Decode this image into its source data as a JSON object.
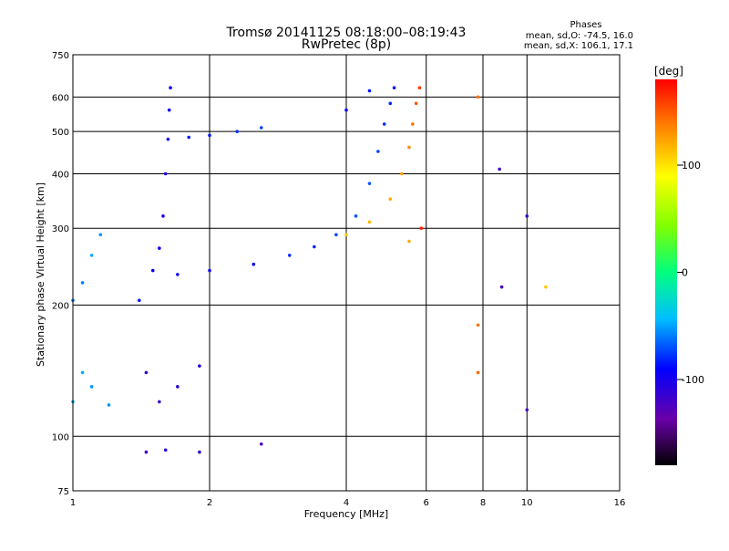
{
  "chart_data": {
    "type": "scatter",
    "title": "Tromsø 20141125 08:18:00–08:19:43",
    "subtitle": "RwPretec (8p)",
    "xlabel": "Frequency [MHz]",
    "ylabel": "Stationary phase Virtual Height [km]",
    "x_scale": "log",
    "y_scale": "log",
    "xlim": [
      1,
      16
    ],
    "ylim": [
      75,
      750
    ],
    "x_ticks": [
      1,
      2,
      4,
      6,
      8,
      10,
      16
    ],
    "y_ticks": [
      75,
      100,
      200,
      300,
      400,
      500,
      600,
      750
    ],
    "grid": true,
    "legend": {
      "title": "Phases",
      "lines": [
        "mean, sd,O: -74.5, 16.0",
        "mean, sd,X: 106.1, 17.1"
      ],
      "position": "top-right"
    },
    "colorbar": {
      "label": "[deg]",
      "range": [
        -180,
        180
      ],
      "ticks": [
        -100,
        0,
        100
      ],
      "colormap": "rainbow"
    },
    "series": [
      {
        "values": [
          [
            1.0,
            205,
            -60
          ],
          [
            1.05,
            225,
            -60
          ],
          [
            1.1,
            260,
            -50
          ],
          [
            1.15,
            290,
            -55
          ],
          [
            1.4,
            205,
            -85
          ],
          [
            1.5,
            240,
            -90
          ],
          [
            1.55,
            270,
            -95
          ],
          [
            1.58,
            320,
            -100
          ],
          [
            1.6,
            400,
            -105
          ],
          [
            1.62,
            480,
            -100
          ],
          [
            1.63,
            560,
            -95
          ],
          [
            1.64,
            630,
            -90
          ],
          [
            1.8,
            485,
            -85
          ],
          [
            2.0,
            490,
            -85
          ],
          [
            2.3,
            500,
            -80
          ],
          [
            2.6,
            510,
            -75
          ],
          [
            1.7,
            235,
            -95
          ],
          [
            2.0,
            240,
            -95
          ],
          [
            2.5,
            248,
            -90
          ],
          [
            3.0,
            260,
            -80
          ],
          [
            3.4,
            272,
            -80
          ],
          [
            3.8,
            290,
            -75
          ],
          [
            4.2,
            320,
            -70
          ],
          [
            4.5,
            380,
            -70
          ],
          [
            4.7,
            450,
            -75
          ],
          [
            4.85,
            520,
            -80
          ],
          [
            5.0,
            580,
            -80
          ],
          [
            5.1,
            630,
            -85
          ],
          [
            4.0,
            560,
            -90
          ],
          [
            4.5,
            620,
            -85
          ],
          [
            4.0,
            290,
            110
          ],
          [
            4.5,
            310,
            115
          ],
          [
            5.0,
            350,
            120
          ],
          [
            5.3,
            400,
            125
          ],
          [
            5.5,
            460,
            130
          ],
          [
            5.6,
            520,
            140
          ],
          [
            5.7,
            580,
            150
          ],
          [
            5.8,
            630,
            160
          ],
          [
            5.5,
            280,
            120
          ],
          [
            5.85,
            300,
            170
          ],
          [
            1.05,
            140,
            -50
          ],
          [
            1.1,
            130,
            -55
          ],
          [
            1.0,
            120,
            -50
          ],
          [
            1.2,
            118,
            -55
          ],
          [
            1.45,
            140,
            -110
          ],
          [
            1.55,
            120,
            -115
          ],
          [
            1.7,
            130,
            -110
          ],
          [
            1.9,
            145,
            -105
          ],
          [
            1.45,
            92,
            -115
          ],
          [
            1.6,
            93,
            -110
          ],
          [
            1.9,
            92,
            -110
          ],
          [
            2.6,
            96,
            -120
          ],
          [
            7.8,
            600,
            140
          ],
          [
            7.8,
            180,
            140
          ],
          [
            7.8,
            140,
            145
          ],
          [
            8.7,
            410,
            -120
          ],
          [
            8.8,
            220,
            -120
          ],
          [
            10.0,
            320,
            -115
          ],
          [
            10.0,
            115,
            -120
          ],
          [
            11.0,
            220,
            110
          ]
        ]
      }
    ]
  }
}
